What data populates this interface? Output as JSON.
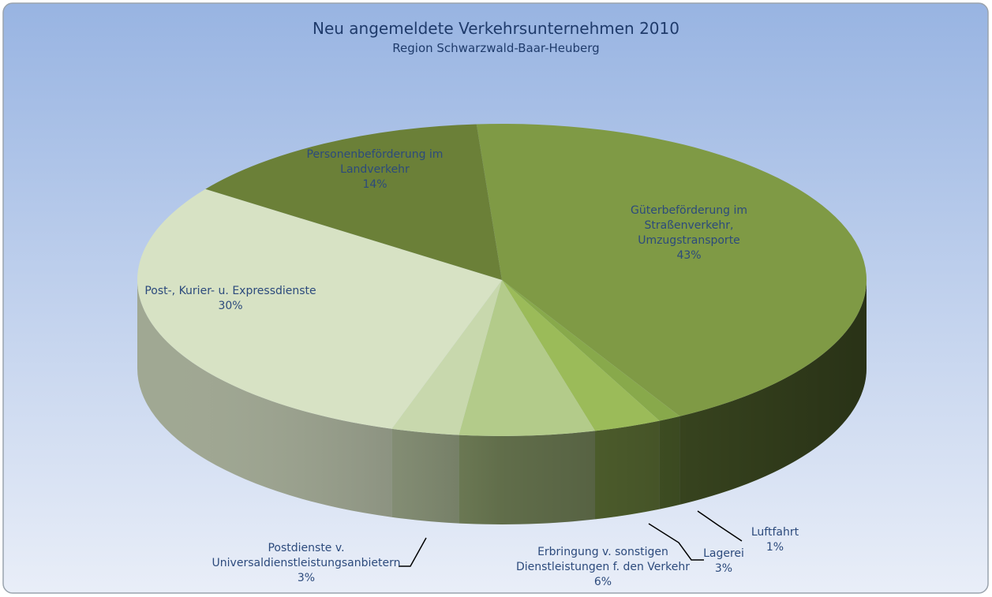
{
  "chart_data": {
    "type": "pie3d",
    "title": "Neu angemeldete Verkehrsunternehmen 2010",
    "subtitle": "Region Schwarzwald-Baar-Heuberg",
    "categories": [
      "Güterbeförderung im Straßenverkehr, Umzugstransporte",
      "Luftfahrt",
      "Lagerei",
      "Erbringung v. sonstigen Dienstleistungen f. den Verkehr",
      "Postdienste v. Universaldienstleistungsanbietern",
      "Post-, Kurier- u. Expressdienste",
      "Personenbeförderung im Landverkehr"
    ],
    "values": [
      43,
      1,
      3,
      6,
      3,
      30,
      14
    ],
    "value_labels": [
      "43%",
      "1%",
      "3%",
      "6%",
      "3%",
      "30%",
      "14%"
    ],
    "colors": [
      "#7f9a45",
      "#88a94b",
      "#9bbb59",
      "#b3cb8a",
      "#c8d8ad",
      "#d7e2c4",
      "#6b8038"
    ]
  }
}
